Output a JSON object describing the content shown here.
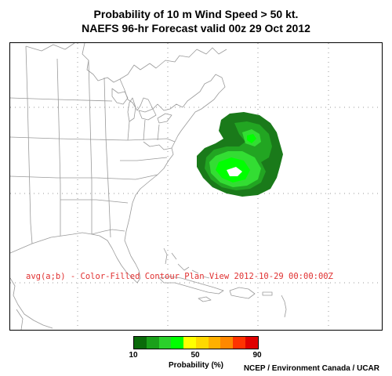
{
  "header": {
    "title_line1": "Probability of 10 m Wind Speed > 50 kt.",
    "title_line2": "NAEFS 96-hr Forecast valid 00z 29 Oct 2012"
  },
  "map": {
    "plot_label": "avg(a;b) - Color-Filled Contour Plan View 2012-10-29 00:00:00Z",
    "land_line_color": "#9a9a9a",
    "grid_color": "#9a9a9a",
    "contours": [
      {
        "level": 10,
        "color": "#1a7a1a"
      },
      {
        "level": 20,
        "color": "#22a522"
      },
      {
        "level": 30,
        "color": "#33dd33"
      },
      {
        "level": 40,
        "color": "#00ff00"
      },
      {
        "level": 50,
        "color": "#ffffff"
      }
    ]
  },
  "legend": {
    "colors": [
      "#0a6a0a",
      "#1aa01a",
      "#2bd02b",
      "#00ff00",
      "#ffff00",
      "#ffd800",
      "#ffb000",
      "#ff8800",
      "#ff3300",
      "#e00000"
    ],
    "tick_labels": [
      "10",
      "50",
      "90"
    ],
    "title": "Probability (%)"
  },
  "credit": "NCEP / Environment Canada / UCAR"
}
